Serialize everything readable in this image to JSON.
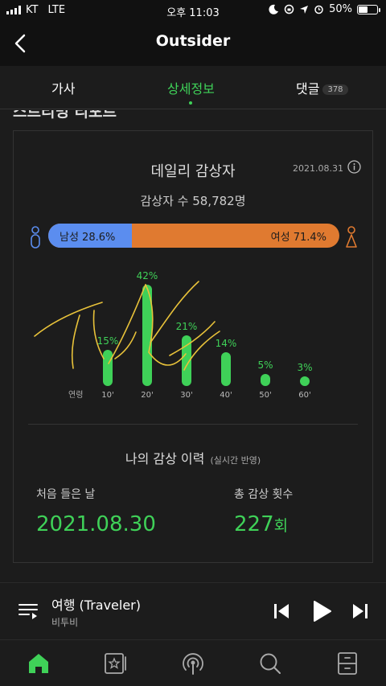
{
  "status_bar": {
    "carrier": "KT",
    "network": "LTE",
    "time": "오후 11:03",
    "battery": "50%",
    "battery_level": 0.5
  },
  "header": {
    "title": "Outsider",
    "back_icon": "chevron-left-icon"
  },
  "tabs": [
    {
      "label": "가사",
      "active": false
    },
    {
      "label": "상세정보",
      "active": true
    },
    {
      "label": "댓글",
      "badge": "378",
      "active": false
    }
  ],
  "section_heading": "스트리밍 리포트",
  "daily": {
    "title": "데일리 감상자",
    "date": "2021.08.31",
    "listener_label": "감상자 수 58,782명",
    "male_label": "남성 28.6%",
    "female_label": "여성 71.4%",
    "male_pct": 28.6,
    "female_pct": 71.4,
    "age_axis_label": "연령"
  },
  "chart_data": {
    "type": "bar",
    "xlabel": "연령",
    "categories": [
      "10'",
      "20'",
      "30'",
      "40'",
      "50'",
      "60'"
    ],
    "values": [
      15,
      42,
      21,
      14,
      5,
      3
    ],
    "value_labels": [
      "15%",
      "42%",
      "21%",
      "14%",
      "5%",
      "3%"
    ],
    "unit": "%",
    "color": "#3fd158"
  },
  "history": {
    "title": "나의 감상 이력",
    "subtitle": "(실시간 반영)",
    "first_label": "처음 들은 날",
    "first_value": "2021.08.30",
    "total_label": "총 감상 횟수",
    "total_value": "227",
    "total_unit": "회"
  },
  "player": {
    "song": "여행 (Traveler)",
    "artist": "비투비"
  },
  "nav": [
    "home-icon",
    "library-icon",
    "podcast-icon",
    "search-icon",
    "storage-icon"
  ],
  "colors": {
    "accent": "#3fd158",
    "male": "#5b8def",
    "female": "#e07a30",
    "background": "#1c1c1c"
  }
}
